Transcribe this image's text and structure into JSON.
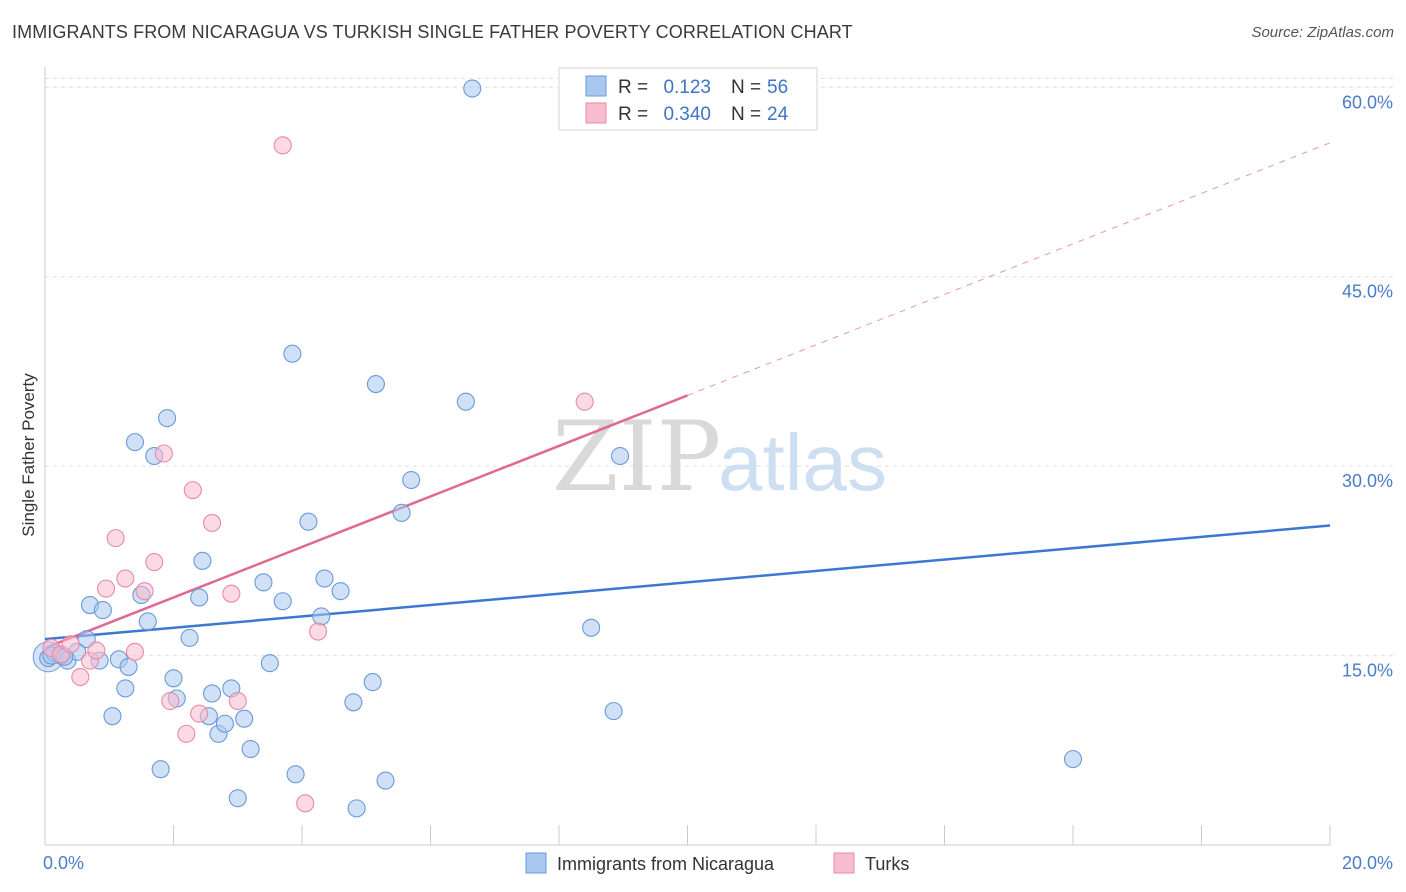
{
  "title": "IMMIGRANTS FROM NICARAGUA VS TURKISH SINGLE FATHER POVERTY CORRELATION CHART",
  "source": "Source: ZipAtlas.com",
  "watermark": {
    "zip": "ZIP",
    "atlas": "atlas"
  },
  "chart_data": {
    "type": "scatter",
    "ylabel": "Single Father Poverty",
    "xlim": [
      0,
      20
    ],
    "ylim": [
      0,
      62
    ],
    "x_tick_labels": [
      {
        "value": 0,
        "label": "0.0%"
      },
      {
        "value": 20,
        "label": "20.0%"
      }
    ],
    "x_minor_ticks": [
      0,
      2,
      4,
      6,
      8,
      10,
      12,
      14,
      16,
      18,
      20
    ],
    "y_ticks": [
      {
        "value": 15,
        "label": "15.0%"
      },
      {
        "value": 30,
        "label": "30.0%"
      },
      {
        "value": 45,
        "label": "45.0%"
      },
      {
        "value": 60,
        "label": "60.0%"
      }
    ],
    "grid": true,
    "legend": {
      "placement": "top-center",
      "entries": [
        {
          "r_label": "R =",
          "r_value": "0.123",
          "n_label": "N =",
          "n_value": "56"
        },
        {
          "r_label": "R =",
          "r_value": "0.340",
          "n_label": "N =",
          "n_value": "24"
        }
      ]
    },
    "colors": {
      "blue_fill": "#a9c8f0",
      "blue_stroke": "#6a9ad8",
      "blue_line": "#3b78d0",
      "pink_fill": "#f7bccd",
      "pink_stroke": "#e98aa6",
      "pink_line": "#e06893",
      "grid": "#dddddd",
      "axis": "#cccccc"
    },
    "series": [
      {
        "name": "Immigrants from Nicaragua",
        "color": "blue",
        "trend": {
          "x0": 0,
          "y0": 16.3,
          "x1": 20,
          "y1": 25.3,
          "dashed_from": null
        },
        "points": [
          [
            0.05,
            14.8
          ],
          [
            0.15,
            15.2
          ],
          [
            0.25,
            15.0
          ],
          [
            0.35,
            14.6
          ],
          [
            0.5,
            15.3
          ],
          [
            0.65,
            16.3
          ],
          [
            0.7,
            19.0
          ],
          [
            0.85,
            14.6
          ],
          [
            0.9,
            18.6
          ],
          [
            1.05,
            10.2
          ],
          [
            1.15,
            14.7
          ],
          [
            1.25,
            12.4
          ],
          [
            1.3,
            14.1
          ],
          [
            1.4,
            31.9
          ],
          [
            1.5,
            19.8
          ],
          [
            1.6,
            17.7
          ],
          [
            1.7,
            30.8
          ],
          [
            1.8,
            6.0
          ],
          [
            1.9,
            33.8
          ],
          [
            2.0,
            13.2
          ],
          [
            2.05,
            11.6
          ],
          [
            2.25,
            16.4
          ],
          [
            2.4,
            19.6
          ],
          [
            2.45,
            22.5
          ],
          [
            2.55,
            10.2
          ],
          [
            2.6,
            12.0
          ],
          [
            2.7,
            8.8
          ],
          [
            2.8,
            9.6
          ],
          [
            2.9,
            12.4
          ],
          [
            3.0,
            3.7
          ],
          [
            3.1,
            10.0
          ],
          [
            3.2,
            7.6
          ],
          [
            3.4,
            20.8
          ],
          [
            3.5,
            14.4
          ],
          [
            3.7,
            19.3
          ],
          [
            3.85,
            38.9
          ],
          [
            3.9,
            5.6
          ],
          [
            4.1,
            25.6
          ],
          [
            4.3,
            18.1
          ],
          [
            4.35,
            21.1
          ],
          [
            4.6,
            20.1
          ],
          [
            4.8,
            11.3
          ],
          [
            4.85,
            2.9
          ],
          [
            5.1,
            12.9
          ],
          [
            5.15,
            36.5
          ],
          [
            5.3,
            5.1
          ],
          [
            5.55,
            26.3
          ],
          [
            5.7,
            28.9
          ],
          [
            6.55,
            35.1
          ],
          [
            6.65,
            59.9
          ],
          [
            8.5,
            17.2
          ],
          [
            8.85,
            10.6
          ],
          [
            8.95,
            30.8
          ],
          [
            16.0,
            6.8
          ],
          [
            0.1,
            15.0
          ],
          [
            0.3,
            14.9
          ]
        ]
      },
      {
        "name": "Turks",
        "color": "pink",
        "trend": {
          "x0": 0,
          "y0": 15.6,
          "x1": 20,
          "y1": 55.6,
          "solid_to": 10.0
        },
        "points": [
          [
            0.1,
            15.6
          ],
          [
            0.25,
            15.1
          ],
          [
            0.4,
            15.9
          ],
          [
            0.55,
            13.3
          ],
          [
            0.7,
            14.6
          ],
          [
            0.8,
            15.4
          ],
          [
            0.95,
            20.3
          ],
          [
            1.1,
            24.3
          ],
          [
            1.25,
            21.1
          ],
          [
            1.4,
            15.3
          ],
          [
            1.55,
            20.1
          ],
          [
            1.7,
            22.4
          ],
          [
            1.85,
            31.0
          ],
          [
            1.95,
            11.4
          ],
          [
            2.2,
            8.8
          ],
          [
            2.3,
            28.1
          ],
          [
            2.4,
            10.4
          ],
          [
            2.6,
            25.5
          ],
          [
            2.9,
            19.9
          ],
          [
            3.0,
            11.4
          ],
          [
            3.7,
            55.4
          ],
          [
            4.05,
            3.3
          ],
          [
            4.25,
            16.9
          ],
          [
            8.4,
            35.1
          ]
        ]
      }
    ]
  },
  "bottom_legend": [
    {
      "label": "Immigrants from Nicaragua",
      "color": "blue"
    },
    {
      "label": "Turks",
      "color": "pink"
    }
  ]
}
